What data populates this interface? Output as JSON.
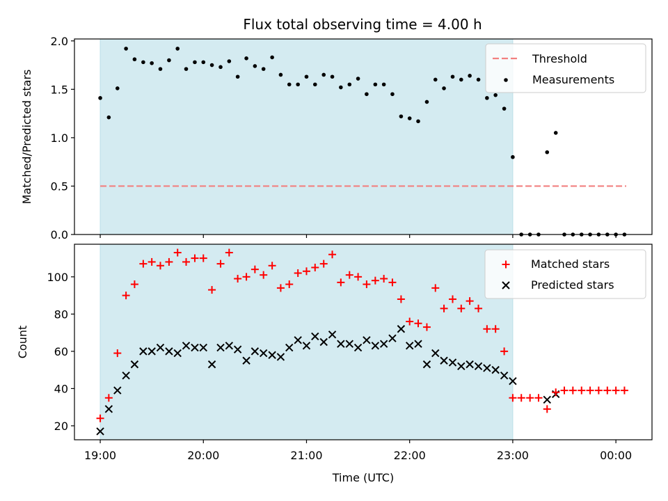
{
  "chart_data": {
    "title": "Flux total observing time = 4.00 h",
    "xlabel": "Time (UTC)",
    "x_unit": "hours",
    "x_ticks": [
      {
        "value": 19,
        "label": "19:00"
      },
      {
        "value": 20,
        "label": "20:00"
      },
      {
        "value": 21,
        "label": "21:00"
      },
      {
        "value": 22,
        "label": "22:00"
      },
      {
        "value": 23,
        "label": "23:00"
      },
      {
        "value": 24,
        "label": "00:00"
      }
    ],
    "xlim": [
      18.75,
      24.35
    ],
    "shaded_span": [
      19.0,
      23.0
    ],
    "shade_color": "#d4ebf1",
    "panels": [
      {
        "type": "scatter",
        "ylabel": "Matched/Predicted stars",
        "ylim": [
          0.0,
          2.02
        ],
        "y_ticks": [
          {
            "value": 0.0,
            "label": "0.0"
          },
          {
            "value": 0.5,
            "label": "0.5"
          },
          {
            "value": 1.0,
            "label": "1.0"
          },
          {
            "value": 1.5,
            "label": "1.5"
          },
          {
            "value": 2.0,
            "label": "2.0"
          }
        ],
        "threshold": {
          "name": "Threshold",
          "value": 0.5,
          "x_range": [
            19.0,
            24.1
          ],
          "color": "#f28080"
        },
        "legend_position": "upper right",
        "series": [
          {
            "name": "Measurements",
            "marker": "dot",
            "color": "#000000",
            "x": [
              19.0,
              19.083,
              19.167,
              19.25,
              19.333,
              19.417,
              19.5,
              19.583,
              19.667,
              19.75,
              19.833,
              19.917,
              20.0,
              20.083,
              20.167,
              20.25,
              20.333,
              20.417,
              20.5,
              20.583,
              20.667,
              20.75,
              20.833,
              20.917,
              21.0,
              21.083,
              21.167,
              21.25,
              21.333,
              21.417,
              21.5,
              21.583,
              21.667,
              21.75,
              21.833,
              21.917,
              22.0,
              22.083,
              22.167,
              22.25,
              22.333,
              22.417,
              22.5,
              22.583,
              22.667,
              22.75,
              22.833,
              22.917,
              23.0,
              23.083,
              23.167,
              23.25,
              23.333,
              23.417,
              23.5,
              23.583,
              23.667,
              23.75,
              23.833,
              23.917,
              24.0,
              24.083
            ],
            "y": [
              1.41,
              1.21,
              1.51,
              1.92,
              1.81,
              1.78,
              1.77,
              1.71,
              1.8,
              1.92,
              1.71,
              1.78,
              1.78,
              1.75,
              1.73,
              1.79,
              1.63,
              1.82,
              1.74,
              1.71,
              1.83,
              1.65,
              1.55,
              1.55,
              1.63,
              1.55,
              1.65,
              1.63,
              1.52,
              1.55,
              1.61,
              1.45,
              1.55,
              1.55,
              1.45,
              1.22,
              1.2,
              1.17,
              1.37,
              1.6,
              1.51,
              1.63,
              1.6,
              1.64,
              1.6,
              1.41,
              1.44,
              1.3,
              0.8,
              0.0,
              0.0,
              0.0,
              0.85,
              1.05,
              0.0,
              0.0,
              0.0,
              0.0,
              0.0,
              0.0,
              0.0,
              0.0
            ]
          }
        ]
      },
      {
        "type": "scatter",
        "ylabel": "Count",
        "ylim": [
          12.5,
          117.5
        ],
        "y_ticks": [
          {
            "value": 20,
            "label": "20"
          },
          {
            "value": 40,
            "label": "40"
          },
          {
            "value": 60,
            "label": "60"
          },
          {
            "value": 80,
            "label": "80"
          },
          {
            "value": 100,
            "label": "100"
          }
        ],
        "legend_position": "upper right",
        "series": [
          {
            "name": "Matched stars",
            "marker": "plus",
            "color": "#ff0000",
            "x": [
              19.0,
              19.083,
              19.167,
              19.25,
              19.333,
              19.417,
              19.5,
              19.583,
              19.667,
              19.75,
              19.833,
              19.917,
              20.0,
              20.083,
              20.167,
              20.25,
              20.333,
              20.417,
              20.5,
              20.583,
              20.667,
              20.75,
              20.833,
              20.917,
              21.0,
              21.083,
              21.167,
              21.25,
              21.333,
              21.417,
              21.5,
              21.583,
              21.667,
              21.75,
              21.833,
              21.917,
              22.0,
              22.083,
              22.167,
              22.25,
              22.333,
              22.417,
              22.5,
              22.583,
              22.667,
              22.75,
              22.833,
              22.917,
              23.0,
              23.083,
              23.167,
              23.25,
              23.333,
              23.417,
              23.5,
              23.583,
              23.667,
              23.75,
              23.833,
              23.917,
              24.0,
              24.083
            ],
            "y": [
              24,
              35,
              59,
              90,
              96,
              107,
              108,
              106,
              108,
              113,
              108,
              110,
              110,
              93,
              107,
              113,
              99,
              100,
              104,
              101,
              106,
              94,
              96,
              102,
              103,
              105,
              107,
              112,
              97,
              101,
              100,
              96,
              98,
              99,
              97,
              88,
              76,
              75,
              73,
              94,
              83,
              88,
              83,
              87,
              83,
              72,
              72,
              60,
              35,
              35,
              35,
              35,
              29,
              38,
              39,
              39,
              39,
              39,
              39,
              39,
              39,
              39
            ]
          },
          {
            "name": "Predicted stars",
            "marker": "x",
            "color": "#000000",
            "x": [
              19.0,
              19.083,
              19.167,
              19.25,
              19.333,
              19.417,
              19.5,
              19.583,
              19.667,
              19.75,
              19.833,
              19.917,
              20.0,
              20.083,
              20.167,
              20.25,
              20.333,
              20.417,
              20.5,
              20.583,
              20.667,
              20.75,
              20.833,
              20.917,
              21.0,
              21.083,
              21.167,
              21.25,
              21.333,
              21.417,
              21.5,
              21.583,
              21.667,
              21.75,
              21.833,
              21.917,
              22.0,
              22.083,
              22.167,
              22.25,
              22.333,
              22.417,
              22.5,
              22.583,
              22.667,
              22.75,
              22.833,
              22.917,
              23.0,
              23.333,
              23.417
            ],
            "y": [
              17,
              29,
              39,
              47,
              53,
              60,
              60,
              62,
              60,
              59,
              63,
              62,
              62,
              53,
              62,
              63,
              61,
              55,
              60,
              59,
              58,
              57,
              62,
              66,
              63,
              68,
              65,
              69,
              64,
              64,
              62,
              66,
              63,
              64,
              67,
              72,
              63,
              64,
              53,
              59,
              55,
              54,
              52,
              53,
              52,
              51,
              50,
              47,
              44,
              34,
              37
            ]
          }
        ]
      }
    ]
  }
}
